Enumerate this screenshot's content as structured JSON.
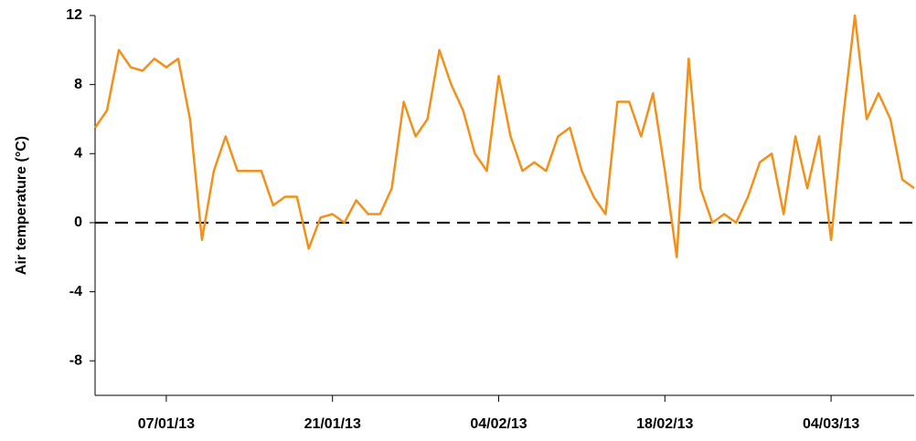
{
  "chart_data": {
    "type": "line",
    "y_label": "Air temperature (°C)",
    "x": [
      "01/01/13",
      "02/01/13",
      "03/01/13",
      "04/01/13",
      "05/01/13",
      "06/01/13",
      "07/01/13",
      "08/01/13",
      "09/01/13",
      "10/01/13",
      "11/01/13",
      "12/01/13",
      "13/01/13",
      "14/01/13",
      "15/01/13",
      "16/01/13",
      "17/01/13",
      "18/01/13",
      "19/01/13",
      "20/01/13",
      "21/01/13",
      "22/01/13",
      "23/01/13",
      "24/01/13",
      "25/01/13",
      "26/01/13",
      "27/01/13",
      "28/01/13",
      "29/01/13",
      "30/01/13",
      "31/01/13",
      "01/02/13",
      "02/02/13",
      "03/02/13",
      "04/02/13",
      "05/02/13",
      "06/02/13",
      "07/02/13",
      "08/02/13",
      "09/02/13",
      "10/02/13",
      "11/02/13",
      "12/02/13",
      "13/02/13",
      "14/02/13",
      "15/02/13",
      "16/02/13",
      "17/02/13",
      "18/02/13",
      "19/02/13",
      "20/02/13",
      "21/02/13",
      "22/02/13",
      "23/02/13",
      "24/02/13",
      "25/02/13",
      "26/02/13",
      "27/02/13",
      "28/02/13",
      "01/03/13",
      "02/03/13",
      "03/03/13",
      "04/03/13",
      "05/03/13",
      "06/03/13",
      "07/03/13",
      "08/03/13",
      "09/03/13",
      "10/03/13",
      "11/03/13"
    ],
    "series": [
      {
        "name": "Air temperature",
        "color": "#f39019",
        "values": [
          5.5,
          6.5,
          10,
          9,
          8.8,
          9.5,
          9,
          9.5,
          6,
          -1,
          3,
          5,
          3,
          3,
          3,
          1,
          1.5,
          1.5,
          -1.5,
          0.3,
          0.5,
          0,
          1.3,
          0.5,
          0.5,
          2,
          7,
          5,
          6,
          10,
          8,
          6.5,
          4,
          3,
          8.5,
          5,
          3,
          3.5,
          3,
          5,
          5.5,
          3,
          1.5,
          0.5,
          7,
          7,
          5,
          7.5,
          3,
          -2,
          9.5,
          2,
          0,
          0.5,
          0,
          1.5,
          3.5,
          4,
          0.5,
          5,
          2,
          5,
          -1,
          6,
          12,
          6,
          7.5,
          6,
          2.5,
          2
        ]
      }
    ],
    "xlim": [
      "01/01/13",
      "11/03/13"
    ],
    "xticks": [
      "07/01/13",
      "21/01/13",
      "04/02/13",
      "18/02/13",
      "04/03/13"
    ],
    "ylim": [
      -10,
      12
    ],
    "yticks": [
      -8,
      -4,
      0,
      4,
      8,
      12
    ],
    "reference_line": 0
  }
}
